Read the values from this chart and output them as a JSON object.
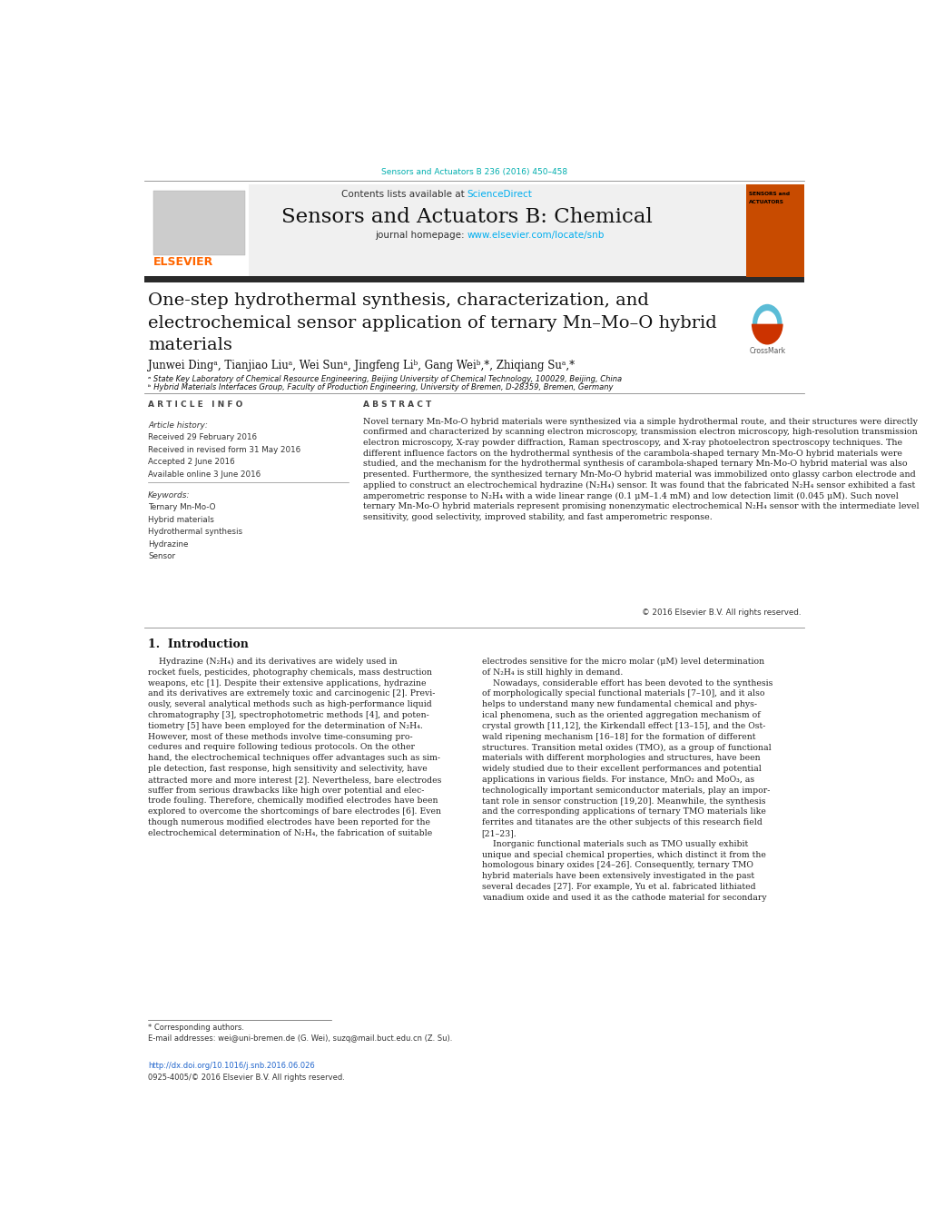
{
  "page_width": 10.2,
  "page_height": 13.51,
  "bg_color": "#ffffff",
  "top_citation": "Sensors and Actuators B 236 (2016) 450–458",
  "top_citation_color": "#00AEAE",
  "journal_name": "Sensors and Actuators B: Chemical",
  "contents_text": "Contents lists available at",
  "science_direct": "ScienceDirect",
  "science_direct_color": "#00AEEF",
  "journal_homepage_text": "journal homepage:",
  "journal_url": "www.elsevier.com/locate/snb",
  "journal_url_color": "#00AEEF",
  "header_bg": "#f0f0f0",
  "dark_bar_color": "#2a2a2a",
  "elsevier_color": "#FF6600",
  "article_title": "One-step hydrothermal synthesis, characterization, and\nelectrochemical sensor application of ternary Mn–Mo–O hybrid\nmaterials",
  "authors": "Junwei Dingᵃ, Tianjiao Liuᵃ, Wei Sunᵃ, Jingfeng Liᵇ, Gang Weiᵇ,*, Zhiqiang Suᵃ,*",
  "affil_a": "ᵃ State Key Laboratory of Chemical Resource Engineering, Beijing University of Chemical Technology, 100029, Beijing, China",
  "affil_b": "ᵇ Hybrid Materials Interfaces Group, Faculty of Production Engineering, University of Bremen, D-28359, Bremen, Germany",
  "article_info_title": "A R T I C L E   I N F O",
  "article_history_title": "Article history:",
  "article_history": [
    "Received 29 February 2016",
    "Received in revised form 31 May 2016",
    "Accepted 2 June 2016",
    "Available online 3 June 2016"
  ],
  "keywords_title": "Keywords:",
  "keywords": [
    "Ternary Mn-Mo-O",
    "Hybrid materials",
    "Hydrothermal synthesis",
    "Hydrazine",
    "Sensor"
  ],
  "abstract_title": "A B S T R A C T",
  "abstract_text": "Novel ternary Mn-Mo-O hybrid materials were synthesized via a simple hydrothermal route, and their structures were directly confirmed and characterized by scanning electron microscopy, transmission electron microscopy, high-resolution transmission electron microscopy, X-ray powder diffraction, Raman spectroscopy, and X-ray photoelectron spectroscopy techniques. The different influence factors on the hydrothermal synthesis of the carambola-shaped ternary Mn-Mo-O hybrid materials were studied, and the mechanism for the hydrothermal synthesis of carambola-shaped ternary Mn-Mo-O hybrid material was also presented. Furthermore, the synthesized ternary Mn-Mo-O hybrid material was immobilized onto glassy carbon electrode and applied to construct an electrochemical hydrazine (N₂H₄) sensor. It was found that the fabricated N₂H₄ sensor exhibited a fast amperometric response to N₂H₄ with a wide linear range (0.1 μM–1.4 mM) and low detection limit (0.045 μM). Such novel ternary Mn-Mo-O hybrid materials represent promising nonenzymatic electrochemical N₂H₄ sensor with the intermediate level sensitivity, good selectivity, improved stability, and fast amperometric response.",
  "copyright": "© 2016 Elsevier B.V. All rights reserved.",
  "section1_title": "1.  Introduction",
  "intro_col1": "    Hydrazine (N₂H₄) and its derivatives are widely used in\nrocket fuels, pesticides, photography chemicals, mass destruction\nweapons, etc [1]. Despite their extensive applications, hydrazine\nand its derivatives are extremely toxic and carcinogenic [2]. Previ-\nously, several analytical methods such as high-performance liquid\nchromatography [3], spectrophotometric methods [4], and poten-\ntiometry [5] have been employed for the determination of N₂H₄.\nHowever, most of these methods involve time-consuming pro-\ncedures and require following tedious protocols. On the other\nhand, the electrochemical techniques offer advantages such as sim-\nple detection, fast response, high sensitivity and selectivity, have\nattracted more and more interest [2]. Nevertheless, bare electrodes\nsuffer from serious drawbacks like high over potential and elec-\ntrode fouling. Therefore, chemically modified electrodes have been\nexplored to overcome the shortcomings of bare electrodes [6]. Even\nthough numerous modified electrodes have been reported for the\nelectrochemical determination of N₂H₄, the fabrication of suitable",
  "intro_col2": "electrodes sensitive for the micro molar (μM) level determination\nof N₂H₄ is still highly in demand.\n    Nowadays, considerable effort has been devoted to the synthesis\nof morphologically special functional materials [7–10], and it also\nhelps to understand many new fundamental chemical and phys-\nical phenomena, such as the oriented aggregation mechanism of\ncrystal growth [11,12], the Kirkendall effect [13–15], and the Ost-\nwald ripening mechanism [16–18] for the formation of different\nstructures. Transition metal oxides (TMO), as a group of functional\nmaterials with different morphologies and structures, have been\nwidely studied due to their excellent performances and potential\napplications in various fields. For instance, MnO₂ and MoO₃, as\ntechnologically important semiconductor materials, play an impor-\ntant role in sensor construction [19,20]. Meanwhile, the synthesis\nand the corresponding applications of ternary TMO materials like\nferrites and titanates are the other subjects of this research field\n[21–23].\n    Inorganic functional materials such as TMO usually exhibit\nunique and special chemical properties, which distinct it from the\nhomologous binary oxides [24–26]. Consequently, ternary TMO\nhybrid materials have been extensively investigated in the past\nseveral decades [27]. For example, Yu et al. fabricated lithiated\nvanadium oxide and used it as the cathode material for secondary",
  "footnote_star": "* Corresponding authors.",
  "footnote_email": "E-mail addresses: wei@uni-bremen.de (G. Wei), suzq@mail.buct.edu.cn (Z. Su).",
  "doi_text": "http://dx.doi.org/10.1016/j.snb.2016.06.026",
  "issn_text": "0925-4005/© 2016 Elsevier B.V. All rights reserved."
}
